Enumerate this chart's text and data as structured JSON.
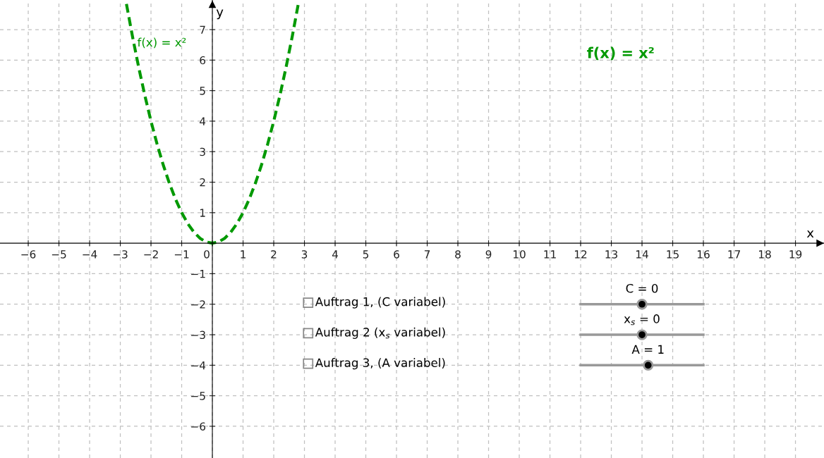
{
  "chart_data": {
    "type": "line",
    "title": "f(x) = x²",
    "xlabel": "x",
    "ylabel": "y",
    "x": [
      -2.8,
      -2.6,
      -2.4,
      -2.2,
      -2.0,
      -1.8,
      -1.6,
      -1.4,
      -1.2,
      -1.0,
      -0.8,
      -0.6,
      -0.4,
      -0.2,
      0.0,
      0.2,
      0.4,
      0.6,
      0.8,
      1.0,
      1.2,
      1.4,
      1.6,
      1.8,
      2.0,
      2.2,
      2.4,
      2.6,
      2.8
    ],
    "series": [
      {
        "name": "f(x) = x²",
        "color": "#009900",
        "values": [
          7.84,
          6.76,
          5.76,
          4.84,
          4.0,
          3.24,
          2.56,
          1.96,
          1.44,
          1.0,
          0.64,
          0.36,
          0.16,
          0.04,
          0.0,
          0.04,
          0.16,
          0.36,
          0.64,
          1.0,
          1.44,
          1.96,
          2.56,
          3.24,
          4.0,
          4.84,
          5.76,
          6.76,
          7.84
        ]
      }
    ],
    "xlim": [
      -6.92,
      19.93
    ],
    "ylim": [
      -7.04,
      7.97
    ],
    "xticks": [
      -6,
      -5,
      -4,
      -3,
      -2,
      -1,
      0,
      1,
      2,
      3,
      4,
      5,
      6,
      7,
      8,
      9,
      10,
      11,
      12,
      13,
      14,
      15,
      16,
      17,
      18,
      19
    ],
    "yticks": [
      -6,
      -5,
      -4,
      -3,
      -2,
      -1,
      1,
      2,
      3,
      4,
      5,
      6,
      7
    ],
    "grid": true,
    "line_style": "dashed",
    "marker": "none",
    "annotations": [
      "Auftrag 1, (C variabel)",
      "Auftrag 2 (x$_{s}$ variabel)",
      "Auftrag 3, (A variabel)",
      "C = 0",
      "x$_{s}$ = 0",
      "A = 1"
    ]
  }
}
